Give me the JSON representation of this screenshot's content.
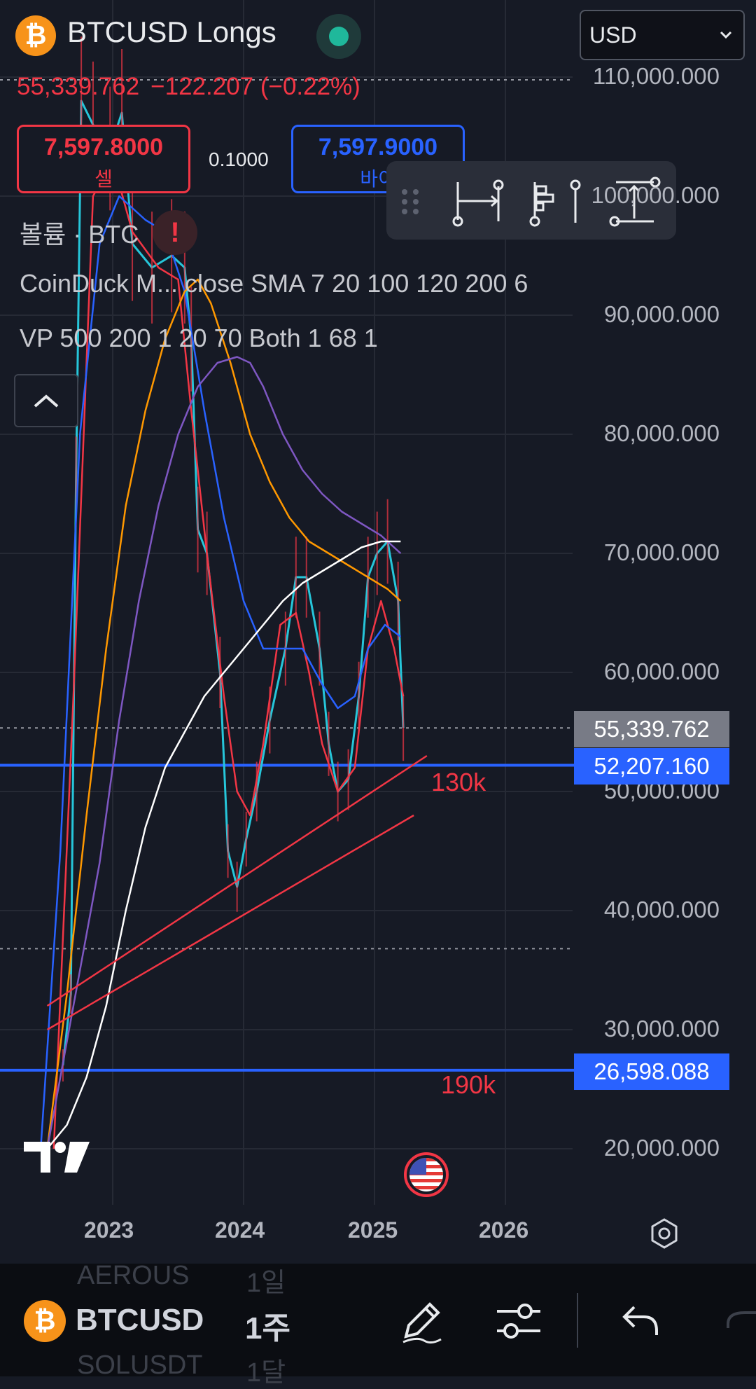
{
  "header": {
    "title": "BTCUSD Longs",
    "currency": "USD",
    "price": "55,339.762",
    "change": "−122.207 (−0.22%)",
    "sell_price": "7,597.8000",
    "sell_label": "셀",
    "buy_price": "7,597.9000",
    "buy_label": "바이",
    "spread": "0.1000",
    "coin_symbol": "₿",
    "warning_symbol": "!"
  },
  "indicators": {
    "volume": "볼륨 · BTC",
    "ma": "CoinDuck M... close SMA 7 20 100 120 200 6",
    "vp": "VP 500 200 1 20 70 Both 1 68 1"
  },
  "axis": {
    "y_labels": [
      "110,000.000",
      "100,000.000",
      "90,000.000",
      "80,000.000",
      "70,000.000",
      "60,000.000",
      "50,000.000",
      "40,000.000",
      "30,000.000",
      "20,000.000"
    ],
    "x_labels": [
      "2023",
      "2024",
      "2025",
      "2026"
    ]
  },
  "price_tags": {
    "current": "55,339.762",
    "level_1": "52,207.160",
    "level_2": "26,598.088"
  },
  "annotations": {
    "label_130k": "130k",
    "label_190k": "190k"
  },
  "bottom_bar": {
    "symbol": "BTCUSD",
    "interval": "1주",
    "ghost_top_symbol": "AEROUS",
    "ghost_top_interval": "1일",
    "ghost_bottom_symbol": "SOLUSDT",
    "ghost_bottom_interval": "1달"
  },
  "colors": {
    "background": "#161a25",
    "red": "#f23645",
    "blue": "#2962ff",
    "candle": "#26c6da",
    "sma_red": "#f23645",
    "sma_blue": "#2962ff",
    "sma_orange": "#ff9800",
    "sma_purple": "#7e57c2",
    "sma_white": "#ffffff"
  },
  "chart_data": {
    "type": "line",
    "title": "BTCUSD Longs",
    "x_ticks": [
      "2023",
      "2024",
      "2025",
      "2026"
    ],
    "y_range": [
      15000,
      115000
    ],
    "log_scale": false,
    "grid": true,
    "series": [
      {
        "name": "Price",
        "color": "#26c6da",
        "points": [
          [
            2022.62,
            27000
          ],
          [
            2022.68,
            33000
          ],
          [
            2022.72,
            76000
          ],
          [
            2022.76,
            108000
          ],
          [
            2022.85,
            106000
          ],
          [
            2022.98,
            104000
          ],
          [
            2023.07,
            107000
          ],
          [
            2023.15,
            96000
          ],
          [
            2023.3,
            94000
          ],
          [
            2023.45,
            95000
          ],
          [
            2023.55,
            94000
          ],
          [
            2023.6,
            88000
          ],
          [
            2023.65,
            72000
          ],
          [
            2023.72,
            70000
          ],
          [
            2023.82,
            60000
          ],
          [
            2023.88,
            45000
          ],
          [
            2023.95,
            42000
          ],
          [
            2024.02,
            46000
          ],
          [
            2024.1,
            50000
          ],
          [
            2024.2,
            56000
          ],
          [
            2024.32,
            62000
          ],
          [
            2024.4,
            68000
          ],
          [
            2024.48,
            68000
          ],
          [
            2024.58,
            62000
          ],
          [
            2024.65,
            54000
          ],
          [
            2024.72,
            50000
          ],
          [
            2024.8,
            51000
          ],
          [
            2024.88,
            58000
          ],
          [
            2024.95,
            68000
          ],
          [
            2025.02,
            70000
          ],
          [
            2025.1,
            71000
          ],
          [
            2025.18,
            66000
          ],
          [
            2025.22,
            55339.762
          ]
        ]
      },
      {
        "name": "SMA 7",
        "color": "#f23645",
        "points": [
          [
            2022.55,
            20000
          ],
          [
            2022.7,
            58000
          ],
          [
            2022.85,
            100000
          ],
          [
            2023.0,
            103000
          ],
          [
            2023.15,
            97000
          ],
          [
            2023.35,
            94000
          ],
          [
            2023.5,
            93000
          ],
          [
            2023.6,
            82000
          ],
          [
            2023.72,
            70000
          ],
          [
            2023.85,
            58000
          ],
          [
            2023.95,
            50000
          ],
          [
            2024.05,
            48000
          ],
          [
            2024.15,
            54000
          ],
          [
            2024.28,
            64000
          ],
          [
            2024.4,
            65000
          ],
          [
            2024.5,
            60000
          ],
          [
            2024.6,
            54000
          ],
          [
            2024.72,
            50000
          ],
          [
            2024.85,
            52000
          ],
          [
            2024.95,
            62000
          ],
          [
            2025.05,
            66000
          ],
          [
            2025.15,
            62000
          ],
          [
            2025.22,
            58000
          ]
        ]
      },
      {
        "name": "SMA 20",
        "color": "#2962ff",
        "points": [
          [
            2022.45,
            20000
          ],
          [
            2022.6,
            45000
          ],
          [
            2022.75,
            80000
          ],
          [
            2022.9,
            96000
          ],
          [
            2023.05,
            100000
          ],
          [
            2023.25,
            98000
          ],
          [
            2023.4,
            97000
          ],
          [
            2023.55,
            92000
          ],
          [
            2023.7,
            82000
          ],
          [
            2023.85,
            73000
          ],
          [
            2024.0,
            66000
          ],
          [
            2024.15,
            62000
          ],
          [
            2024.3,
            62000
          ],
          [
            2024.45,
            62000
          ],
          [
            2024.6,
            59000
          ],
          [
            2024.72,
            57000
          ],
          [
            2024.85,
            58000
          ],
          [
            2024.95,
            62000
          ],
          [
            2025.08,
            64000
          ],
          [
            2025.2,
            63000
          ]
        ]
      },
      {
        "name": "SMA 100",
        "color": "#ff9800",
        "points": [
          [
            2022.5,
            20000
          ],
          [
            2022.65,
            33000
          ],
          [
            2022.8,
            48000
          ],
          [
            2022.95,
            62000
          ],
          [
            2023.1,
            74000
          ],
          [
            2023.25,
            82000
          ],
          [
            2023.4,
            88000
          ],
          [
            2023.55,
            92000
          ],
          [
            2023.65,
            93000
          ],
          [
            2023.75,
            91000
          ],
          [
            2023.9,
            86000
          ],
          [
            2024.05,
            80000
          ],
          [
            2024.2,
            76000
          ],
          [
            2024.35,
            73000
          ],
          [
            2024.5,
            71000
          ],
          [
            2024.65,
            70000
          ],
          [
            2024.8,
            69000
          ],
          [
            2024.95,
            68000
          ],
          [
            2025.1,
            67000
          ],
          [
            2025.2,
            66000
          ]
        ]
      },
      {
        "name": "SMA 120",
        "color": "#7e57c2",
        "points": [
          [
            2022.5,
            20000
          ],
          [
            2022.7,
            32000
          ],
          [
            2022.9,
            44000
          ],
          [
            2023.05,
            56000
          ],
          [
            2023.2,
            66000
          ],
          [
            2023.35,
            74000
          ],
          [
            2023.5,
            80000
          ],
          [
            2023.65,
            84000
          ],
          [
            2023.8,
            86000
          ],
          [
            2023.95,
            86500
          ],
          [
            2024.05,
            86000
          ],
          [
            2024.15,
            84000
          ],
          [
            2024.3,
            80000
          ],
          [
            2024.45,
            77000
          ],
          [
            2024.6,
            75000
          ],
          [
            2024.75,
            73500
          ],
          [
            2024.9,
            72500
          ],
          [
            2025.05,
            71500
          ],
          [
            2025.2,
            70000
          ]
        ]
      },
      {
        "name": "SMA 200",
        "color": "#ffffff",
        "points": [
          [
            2022.5,
            20000
          ],
          [
            2022.65,
            22000
          ],
          [
            2022.8,
            26000
          ],
          [
            2022.95,
            32000
          ],
          [
            2023.1,
            40000
          ],
          [
            2023.25,
            47000
          ],
          [
            2023.4,
            52000
          ],
          [
            2023.55,
            55000
          ],
          [
            2023.7,
            58000
          ],
          [
            2023.85,
            60000
          ],
          [
            2024.0,
            62000
          ],
          [
            2024.15,
            64000
          ],
          [
            2024.3,
            66000
          ],
          [
            2024.45,
            67500
          ],
          [
            2024.6,
            68500
          ],
          [
            2024.75,
            69500
          ],
          [
            2024.9,
            70500
          ],
          [
            2025.05,
            71000
          ],
          [
            2025.2,
            71000
          ]
        ]
      }
    ],
    "horizontal_levels": [
      {
        "value": 52207.16,
        "color": "#2962ff"
      },
      {
        "value": 26598.088,
        "color": "#2962ff"
      }
    ],
    "trendlines": [
      {
        "from": [
          2022.5,
          32000
        ],
        "to": [
          2025.4,
          53000
        ],
        "color": "#f23645",
        "label": "130k"
      },
      {
        "from": [
          2022.5,
          30000
        ],
        "to": [
          2025.3,
          48000
        ],
        "color": "#f23645"
      }
    ]
  }
}
